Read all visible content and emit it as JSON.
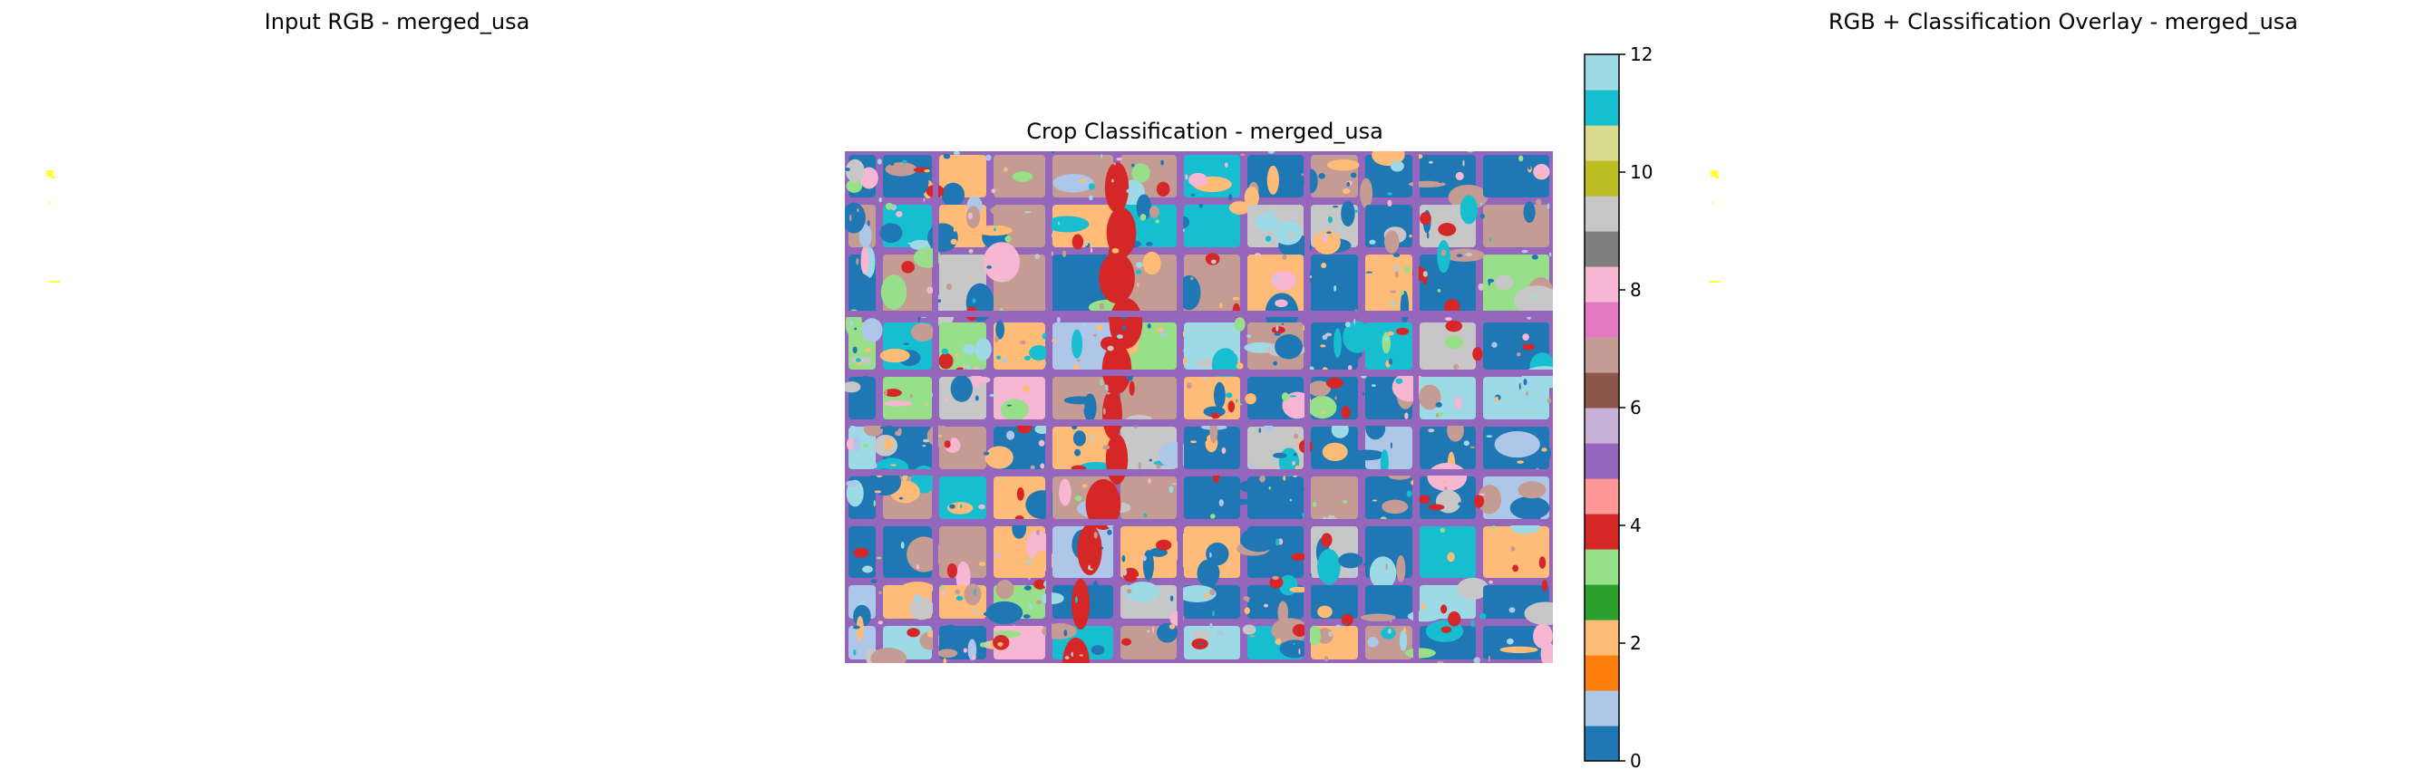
{
  "panels": {
    "left_title": "Input RGB - merged_usa",
    "center_title": "Crop Classification - merged_usa",
    "right_title": "RGB + Classification Overlay - merged_usa"
  },
  "chart_data": [
    {
      "type": "image",
      "title": "Input RGB - merged_usa",
      "axes": "off",
      "content": "mostly white image with a few small yellow pixels"
    },
    {
      "type": "heatmap",
      "title": "Crop Classification - merged_usa",
      "axes": "off",
      "colorbar": {
        "range": [
          0,
          12
        ],
        "ticks": [
          0,
          2,
          4,
          6,
          8,
          10,
          12
        ],
        "colormap": "tab20",
        "colors": [
          "#1f77b4",
          "#aec7e8",
          "#ff7f0e",
          "#ffbb78",
          "#2ca02c",
          "#98df8a",
          "#d62728",
          "#ff9896",
          "#9467bd",
          "#c5b0d5",
          "#8c564b",
          "#c49c94",
          "#e377c2",
          "#f7b6d2",
          "#7f7f7f",
          "#c7c7c7",
          "#bcbd22",
          "#dbdb8d",
          "#17becf",
          "#9edae5"
        ]
      },
      "dominant_classes_order": [
        "#1f77b4",
        "#ffbb78",
        "#c49c94",
        "#98df8a",
        "#aec7e8",
        "#9467bd",
        "#d62728",
        "#9edae5",
        "#17becf",
        "#f7b6d2",
        "#c7c7c7"
      ]
    },
    {
      "type": "image",
      "title": "RGB + Classification Overlay - merged_usa",
      "axes": "off",
      "content": "mostly white image with a few small yellow pixels"
    }
  ]
}
